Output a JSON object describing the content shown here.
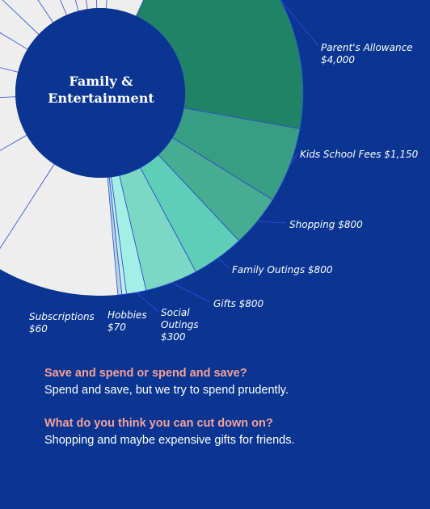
{
  "chart_data": {
    "type": "pie",
    "title": "Family & Entertainment",
    "unit": "$",
    "slices": [
      {
        "label": "Parent's Allowance",
        "value_text": "$4,000",
        "value": 4000,
        "color": "#208366"
      },
      {
        "label": "Kids School Fees",
        "value_text": "$1,150",
        "value": 1150,
        "color": "#389d82"
      },
      {
        "label": "Shopping",
        "value_text": "$800",
        "value": 800,
        "color": "#47ac90"
      },
      {
        "label": "Family Outings",
        "value_text": "$800",
        "value": 800,
        "color": "#5ccfb6"
      },
      {
        "label": "Gifts",
        "value_text": "$800",
        "value": 800,
        "color": "#7ad8c4"
      },
      {
        "label": "Social Outings",
        "value_text": "$300",
        "value": 300,
        "color": "#a1f0e3"
      },
      {
        "label": "Hobbies",
        "value_text": "$70",
        "value": 70,
        "color": "#bfeeea"
      },
      {
        "label": "Subscriptions",
        "value_text": "$60",
        "value": 60,
        "color": "#b3d7dd"
      }
    ],
    "remainder_color": "#eeeeee",
    "center_color": "#0a3592",
    "segment_line_color": "#2d47d6"
  },
  "qa": [
    {
      "question": "Save and spend or spend and save?",
      "answer": "Spend and save, but we try to spend prudently."
    },
    {
      "question": "What do you think you can cut down on?",
      "answer": "Shopping and maybe expensive gifts for friends."
    }
  ],
  "colors": {
    "background": "#0a3592",
    "question": "#f4a19a",
    "answer": "#ffffff"
  }
}
